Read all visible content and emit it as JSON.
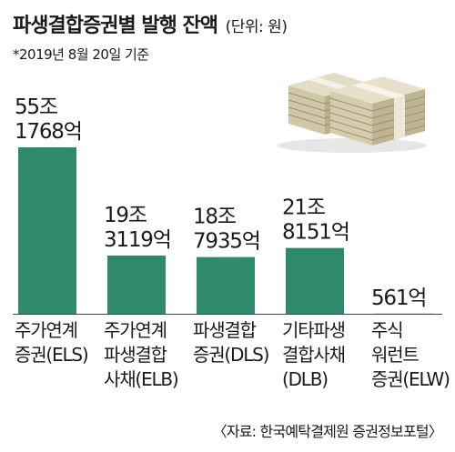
{
  "header": {
    "title": "파생결합증권별 발행 잔액",
    "unit": "(단위: 원)",
    "note": "*2019년 8월 20일 기준"
  },
  "source": "〈자료: 한국예탁결제원 증권정보포털〉",
  "colors": {
    "bar": "#2f8a6c",
    "text": "#1a1a1a",
    "baseline": "#444444"
  },
  "illustration": "money-stack-icon",
  "chart_data": {
    "type": "bar",
    "categories": [
      [
        "주가연계",
        "증권(ELS)"
      ],
      [
        "주가연계",
        "파생결합",
        "사채(ELB)"
      ],
      [
        "파생결합",
        "증권(DLS)"
      ],
      [
        "기타파생",
        "결합사채",
        "(DLB)"
      ],
      [
        "주식",
        "워런트",
        "증권(ELW)"
      ]
    ],
    "values": [
      55.1768,
      19.3119,
      18.7935,
      21.8151,
      0.0561
    ],
    "data_labels": [
      [
        "55조",
        "1768억"
      ],
      [
        "19조",
        "3119억"
      ],
      [
        "18조",
        "7935억"
      ],
      [
        "21조",
        "8151억"
      ],
      [
        "561억"
      ]
    ],
    "value_unit": "조 원",
    "ylim": [
      0,
      55.1768
    ]
  }
}
